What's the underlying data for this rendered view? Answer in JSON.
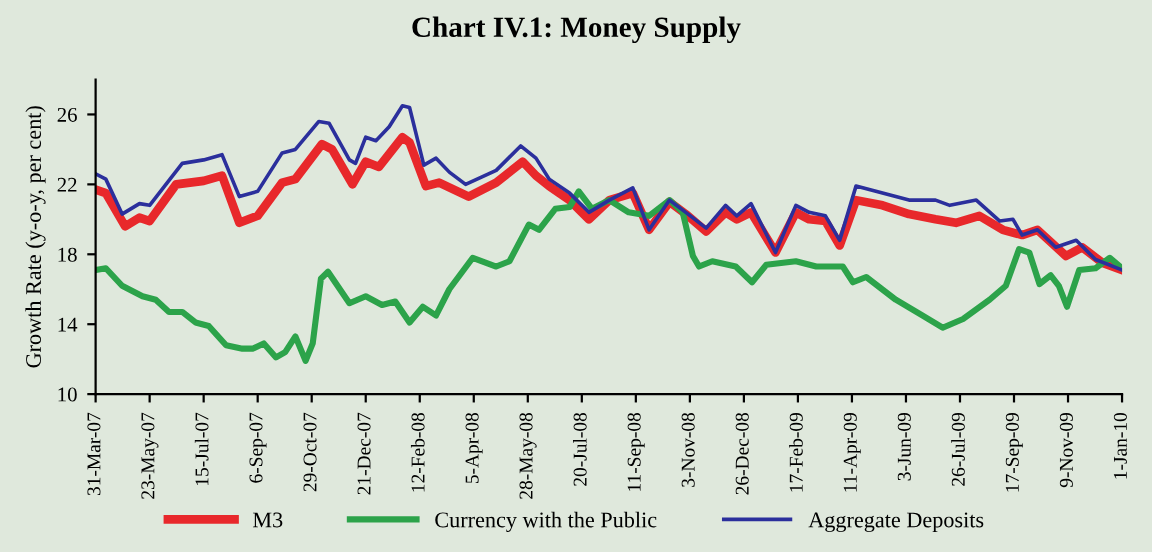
{
  "chart_data": {
    "type": "line",
    "title": "Chart IV.1: Money Supply",
    "ylabel": "Growth Rate (y-o-y, per cent)",
    "ylim": [
      10,
      28
    ],
    "yticks": [
      10,
      14,
      18,
      22,
      26
    ],
    "xlim": [
      "2007-03-31",
      "2010-01-01"
    ],
    "xticks": [
      {
        "value": "2007-03-31",
        "label": "31-Mar-07"
      },
      {
        "value": "2007-05-23",
        "label": "23-May-07"
      },
      {
        "value": "2007-07-15",
        "label": "15-Jul-07"
      },
      {
        "value": "2007-09-06",
        "label": "6-Sep-07"
      },
      {
        "value": "2007-10-29",
        "label": "29-Oct-07"
      },
      {
        "value": "2007-12-21",
        "label": "21-Dec-07"
      },
      {
        "value": "2008-02-12",
        "label": "12-Feb-08"
      },
      {
        "value": "2008-04-05",
        "label": "5-Apr-08"
      },
      {
        "value": "2008-05-28",
        "label": "28-May-08"
      },
      {
        "value": "2008-07-20",
        "label": "20-Jul-08"
      },
      {
        "value": "2008-09-11",
        "label": "11-Sep-08"
      },
      {
        "value": "2008-11-03",
        "label": "3-Nov-08"
      },
      {
        "value": "2008-12-26",
        "label": "26-Dec-08"
      },
      {
        "value": "2009-02-17",
        "label": "17-Feb-09"
      },
      {
        "value": "2009-04-11",
        "label": "11-Apr-09"
      },
      {
        "value": "2009-06-03",
        "label": "3-Jun-09"
      },
      {
        "value": "2009-07-26",
        "label": "26-Jul-09"
      },
      {
        "value": "2009-09-17",
        "label": "17-Sep-09"
      },
      {
        "value": "2009-11-09",
        "label": "9-Nov-09"
      },
      {
        "value": "2010-01-01",
        "label": "1-Jan-10"
      }
    ],
    "grid": false,
    "legend": "bottom",
    "marker": "none",
    "line_style": "solid",
    "series": [
      {
        "name": "M3",
        "color": "#e8282b",
        "x": [
          "2007-03-31",
          "2007-04-10",
          "2007-04-29",
          "2007-05-13",
          "2007-05-23",
          "2007-06-18",
          "2007-07-15",
          "2007-08-02",
          "2007-08-19",
          "2007-09-06",
          "2007-09-30",
          "2007-10-13",
          "2007-11-08",
          "2007-11-18",
          "2007-12-08",
          "2007-12-21",
          "2008-01-03",
          "2008-01-26",
          "2008-02-02",
          "2008-02-18",
          "2008-03-02",
          "2008-03-31",
          "2008-04-27",
          "2008-05-23",
          "2008-06-05",
          "2008-06-18",
          "2008-07-08",
          "2008-07-27",
          "2008-08-16",
          "2008-09-08",
          "2008-09-24",
          "2008-10-14",
          "2008-10-30",
          "2008-11-19",
          "2008-12-08",
          "2008-12-19",
          "2009-01-02",
          "2009-01-26",
          "2009-02-15",
          "2009-02-28",
          "2009-03-16",
          "2009-03-30",
          "2009-04-15",
          "2009-05-11",
          "2009-06-06",
          "2009-07-02",
          "2009-07-22",
          "2009-08-14",
          "2009-09-06",
          "2009-09-25",
          "2009-10-10",
          "2009-11-07",
          "2009-11-23",
          "2009-12-13",
          "2010-01-01"
        ],
        "values": [
          21.7,
          21.5,
          19.6,
          20.1,
          19.9,
          22.0,
          22.2,
          22.5,
          19.8,
          20.2,
          22.1,
          22.3,
          24.3,
          24.0,
          22.0,
          23.3,
          23.0,
          24.7,
          24.4,
          21.9,
          22.1,
          21.3,
          22.1,
          23.3,
          22.5,
          21.9,
          21.1,
          20.0,
          21.1,
          21.5,
          19.4,
          21.0,
          20.3,
          19.3,
          20.4,
          20.0,
          20.4,
          18.1,
          20.4,
          20.0,
          19.9,
          18.5,
          21.1,
          20.8,
          20.3,
          20.0,
          19.8,
          20.2,
          19.4,
          19.1,
          19.4,
          17.9,
          18.4,
          17.5,
          17.1
        ]
      },
      {
        "name": "Currency with the Public",
        "color": "#2ca34a",
        "x": [
          "2007-03-31",
          "2007-04-10",
          "2007-04-26",
          "2007-05-16",
          "2007-05-29",
          "2007-06-11",
          "2007-06-24",
          "2007-07-07",
          "2007-07-20",
          "2007-08-06",
          "2007-08-22",
          "2007-09-01",
          "2007-09-12",
          "2007-09-24",
          "2007-10-03",
          "2007-10-13",
          "2007-10-23",
          "2007-10-30",
          "2007-11-07",
          "2007-11-14",
          "2007-12-05",
          "2007-12-21",
          "2008-01-06",
          "2008-01-19",
          "2008-02-02",
          "2008-02-15",
          "2008-02-28",
          "2008-03-12",
          "2008-04-04",
          "2008-04-27",
          "2008-05-10",
          "2008-05-29",
          "2008-06-08",
          "2008-06-24",
          "2008-07-08",
          "2008-07-17",
          "2008-07-30",
          "2008-08-16",
          "2008-09-04",
          "2008-09-24",
          "2008-10-14",
          "2008-10-27",
          "2008-11-06",
          "2008-11-12",
          "2008-11-25",
          "2008-12-18",
          "2009-01-03",
          "2009-01-17",
          "2009-02-15",
          "2009-03-07",
          "2009-04-02",
          "2009-04-12",
          "2009-04-25",
          "2009-05-24",
          "2009-06-19",
          "2009-07-09",
          "2009-07-29",
          "2009-08-24",
          "2009-09-09",
          "2009-09-22",
          "2009-10-02",
          "2009-10-12",
          "2009-10-23",
          "2009-10-31",
          "2009-11-08",
          "2009-11-20",
          "2009-12-06",
          "2009-12-20",
          "2010-01-01"
        ],
        "values": [
          17.1,
          17.2,
          16.2,
          15.6,
          15.4,
          14.7,
          14.7,
          14.1,
          13.9,
          12.8,
          12.6,
          12.6,
          12.9,
          12.1,
          12.4,
          13.3,
          11.9,
          12.9,
          16.6,
          17.0,
          15.2,
          15.6,
          15.1,
          15.3,
          14.1,
          15.0,
          14.5,
          16.0,
          17.8,
          17.3,
          17.6,
          19.7,
          19.4,
          20.6,
          20.7,
          21.6,
          20.6,
          21.1,
          20.4,
          20.2,
          21.1,
          20.4,
          17.9,
          17.3,
          17.6,
          17.3,
          16.4,
          17.4,
          17.6,
          17.3,
          17.3,
          16.4,
          16.7,
          15.4,
          14.5,
          13.8,
          14.3,
          15.4,
          16.2,
          18.3,
          18.1,
          16.3,
          16.8,
          16.2,
          15.0,
          17.1,
          17.2,
          17.8,
          17.2
        ]
      },
      {
        "name": "Aggregate Deposits",
        "color": "#2b2f9c",
        "x": [
          "2007-03-31",
          "2007-04-10",
          "2007-04-26",
          "2007-05-13",
          "2007-05-23",
          "2007-06-04",
          "2007-06-24",
          "2007-07-15",
          "2007-08-02",
          "2007-08-19",
          "2007-09-06",
          "2007-09-30",
          "2007-10-13",
          "2007-11-05",
          "2007-11-15",
          "2007-12-05",
          "2007-12-11",
          "2007-12-21",
          "2007-12-31",
          "2008-01-13",
          "2008-01-26",
          "2008-02-02",
          "2008-02-16",
          "2008-02-28",
          "2008-03-12",
          "2008-03-28",
          "2008-04-27",
          "2008-05-21",
          "2008-06-05",
          "2008-06-18",
          "2008-07-08",
          "2008-07-27",
          "2008-08-16",
          "2008-09-08",
          "2008-09-24",
          "2008-10-14",
          "2008-10-30",
          "2008-11-19",
          "2008-12-08",
          "2008-12-19",
          "2009-01-02",
          "2009-01-26",
          "2009-02-15",
          "2009-02-28",
          "2009-03-16",
          "2009-03-30",
          "2009-04-15",
          "2009-05-11",
          "2009-06-06",
          "2009-07-02",
          "2009-07-16",
          "2009-08-11",
          "2009-09-03",
          "2009-09-16",
          "2009-09-25",
          "2009-10-10",
          "2009-10-28",
          "2009-11-17",
          "2009-12-06",
          "2010-01-01"
        ],
        "values": [
          22.6,
          22.3,
          20.3,
          20.9,
          20.8,
          21.7,
          23.2,
          23.4,
          23.7,
          21.3,
          21.6,
          23.8,
          24.0,
          25.6,
          25.5,
          23.4,
          23.2,
          24.7,
          24.5,
          25.3,
          26.5,
          26.4,
          23.1,
          23.5,
          22.7,
          22.0,
          22.8,
          24.2,
          23.5,
          22.3,
          21.5,
          20.4,
          21.1,
          21.8,
          19.4,
          21.1,
          20.4,
          19.5,
          20.8,
          20.2,
          20.9,
          18.1,
          20.8,
          20.4,
          20.2,
          18.8,
          21.9,
          21.5,
          21.1,
          21.1,
          20.8,
          21.1,
          19.9,
          20.0,
          19.1,
          19.4,
          18.4,
          18.8,
          17.7,
          17.1
        ]
      }
    ]
  }
}
